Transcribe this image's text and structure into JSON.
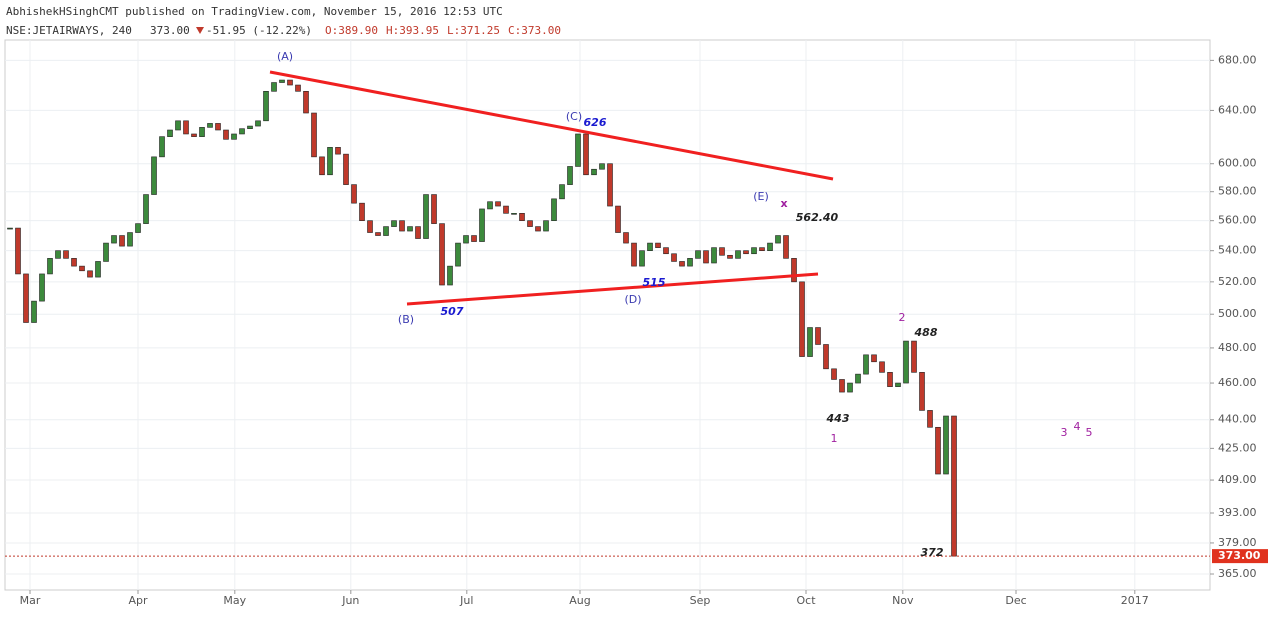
{
  "header": {
    "publisher": "AbhishekHSinghCMT published on TradingView.com, November 15, 2016 12:53 UTC",
    "symbol": "NSE:JETAIRWAYS, 240",
    "last": "373.00",
    "change": "-51.95 (-12.22%)",
    "open": "O:389.90",
    "high": "H:393.95",
    "low": "L:371.25",
    "close": "C:373.00"
  },
  "chart_data": {
    "type": "candlestick",
    "log_scale": true,
    "grid": true,
    "up_color": "#3c8a3c",
    "down_color": "#c0392b",
    "values": [
      555,
      525,
      495,
      508,
      525,
      535,
      540,
      535,
      530,
      527,
      523,
      533,
      545,
      550,
      543,
      552,
      558,
      578,
      605,
      620,
      625,
      632,
      622,
      620,
      627,
      630,
      625,
      618,
      622,
      626,
      628,
      632,
      655,
      662,
      664,
      660,
      655,
      638,
      605,
      592,
      612,
      607,
      585,
      572,
      560,
      552,
      550,
      556,
      560,
      553,
      556,
      548,
      578,
      558,
      518,
      530,
      545,
      550,
      546,
      568,
      573,
      570,
      565,
      565,
      560,
      556,
      553,
      560,
      575,
      585,
      598,
      622,
      592,
      596,
      600,
      570,
      552,
      545,
      530,
      540,
      545,
      542,
      538,
      533,
      530,
      535,
      540,
      532,
      542,
      537,
      535,
      540,
      538,
      542,
      540,
      545,
      550,
      535,
      520,
      475,
      492,
      482,
      468,
      462,
      455,
      460,
      465,
      476,
      472,
      466,
      458,
      460,
      484,
      466,
      445,
      436,
      412,
      442,
      373
    ],
    "xlim": [
      -0.625,
      150
    ],
    "ylim": [
      358,
      697
    ],
    "xticks": [
      {
        "value": 2.5,
        "label": "Mar"
      },
      {
        "value": 16,
        "label": "Apr"
      },
      {
        "value": 28.1,
        "label": "May"
      },
      {
        "value": 42.6,
        "label": "Jun"
      },
      {
        "value": 57.1,
        "label": "Jul"
      },
      {
        "value": 71.25,
        "label": "Aug"
      },
      {
        "value": 86.25,
        "label": "Sep"
      },
      {
        "value": 99.5,
        "label": "Oct"
      },
      {
        "value": 111.6,
        "label": "Nov"
      },
      {
        "value": 125.75,
        "label": "Dec"
      },
      {
        "value": 140.6,
        "label": "2017"
      }
    ],
    "yticks": [
      {
        "value": 365,
        "label": "365.00"
      },
      {
        "value": 379,
        "label": "379.00"
      },
      {
        "value": 393,
        "label": "393.00"
      },
      {
        "value": 409,
        "label": "409.00"
      },
      {
        "value": 425,
        "label": "425.00"
      },
      {
        "value": 440,
        "label": "440.00"
      },
      {
        "value": 460,
        "label": "460.00"
      },
      {
        "value": 480,
        "label": "480.00"
      },
      {
        "value": 500,
        "label": "500.00"
      },
      {
        "value": 520,
        "label": "520.00"
      },
      {
        "value": 540,
        "label": "540.00"
      },
      {
        "value": 560,
        "label": "560.00"
      },
      {
        "value": 580,
        "label": "580.00"
      },
      {
        "value": 600,
        "label": "600.00"
      },
      {
        "value": 640,
        "label": "640.00"
      },
      {
        "value": 680,
        "label": "680.00"
      }
    ],
    "last_price": {
      "value": 373,
      "label": "373.00"
    },
    "annotations": [
      "(A)",
      "(B)",
      "507",
      "(C)",
      "626",
      "(D)",
      "515",
      "(E)",
      "x",
      "562.40",
      "2",
      "488",
      "443",
      "1",
      "372",
      "3",
      "4",
      "5"
    ]
  }
}
